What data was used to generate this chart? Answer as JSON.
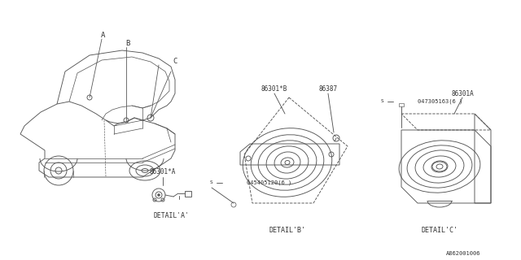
{
  "bg_color": "#ffffff",
  "line_color": "#555555",
  "text_color": "#333333",
  "part_numbers": {
    "detail_a_label": "86301*A",
    "detail_b_label1": "86301*B",
    "detail_b_label2": "86387",
    "detail_b_screw": "045405120(6 )",
    "detail_c_label": "86301A",
    "detail_c_screw": "047305163(6 )",
    "footnote": "A862001006"
  },
  "detail_labels": {
    "a": "DETAIL'A'",
    "b": "DETAIL'B'",
    "c": "DETAIL'C'"
  },
  "callout_letters": [
    "A",
    "B",
    "C"
  ],
  "car": {
    "body_color": "#aaaaaa",
    "line_width": 0.6
  }
}
